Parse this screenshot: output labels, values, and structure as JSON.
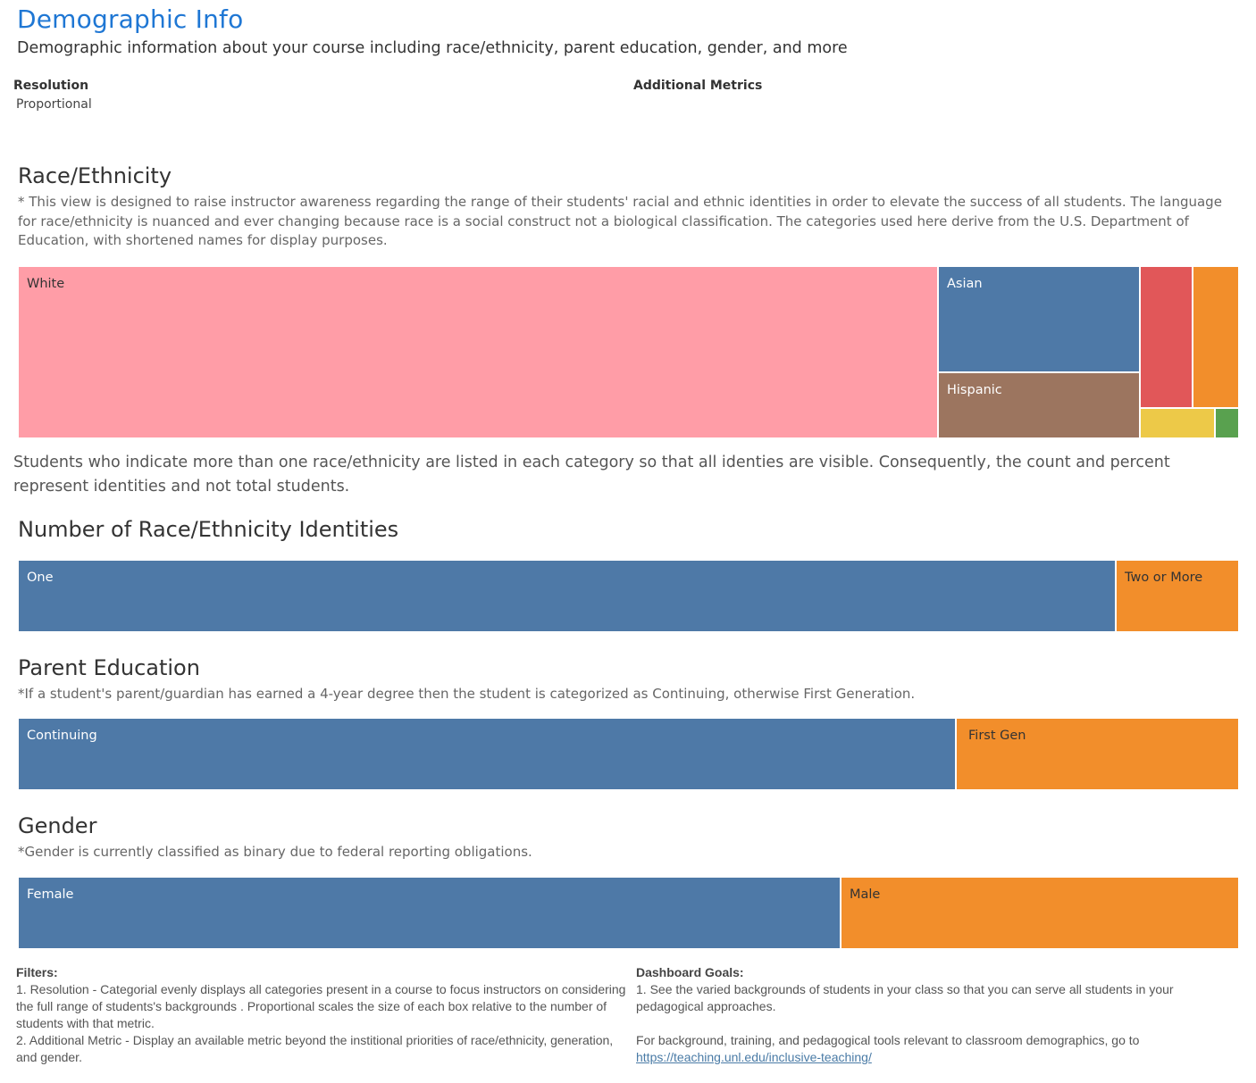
{
  "header": {
    "title": "Demographic Info",
    "subtitle": "Demographic information about your course including race/ethnicity, parent education, gender, and more"
  },
  "filters": {
    "resolution_label": "Resolution",
    "resolution_value": "Proportional",
    "additional_metrics_label": "Additional Metrics"
  },
  "race": {
    "title": "Race/Ethnicity",
    "note": "* This view is designed to raise instructor awareness regarding the range of their students' racial and ethnic identities in order to elevate the success of all students. The language for race/ethnicity is nuanced and ever changing because race is a social construct not a biological classification. The categories used here derive from the U.S. Department of Education, with shortened names for display purposes.",
    "boxes": [
      {
        "label": "White",
        "color": "#ff9da7"
      },
      {
        "label": "Asian",
        "color": "#4e79a7"
      },
      {
        "label": "Hispanic",
        "color": "#9c755f"
      },
      {
        "label": "",
        "color": "#e15759"
      },
      {
        "label": "",
        "color": "#f28e2b"
      },
      {
        "label": "",
        "color": "#edc948"
      },
      {
        "label": "",
        "color": "#59a14f"
      }
    ],
    "explanation": "Students who indicate more than one race/ethnicity are listed in each category so that all identies are visible. Consequently, the count and percent represent identities and not total students."
  },
  "identities": {
    "title": "Number of Race/Ethnicity Identities",
    "segments": [
      {
        "label": "One",
        "share": 0.899,
        "color": "#4e79a7"
      },
      {
        "label": "Two or More",
        "share": 0.101,
        "color": "#f28e2b"
      }
    ]
  },
  "parent_education": {
    "title": "Parent Education",
    "note": "*If a student's parent/guardian has earned a 4-year degree then the student is categorized as Continuing, otherwise First Generation.",
    "segments": [
      {
        "label": "Continuing",
        "share": 0.768,
        "color": "#4e79a7"
      },
      {
        "label": "First Gen",
        "share": 0.232,
        "color": "#f28e2b"
      }
    ]
  },
  "gender": {
    "title": "Gender",
    "note": "*Gender is currently classified as binary due to federal reporting obligations.",
    "segments": [
      {
        "label": "Female",
        "share": 0.674,
        "color": "#4e79a7"
      },
      {
        "label": "Male",
        "share": 0.326,
        "color": "#f28e2b"
      }
    ]
  },
  "footer": {
    "filters_heading": "Filters:",
    "filters_line1": "1. Resolution - Categorial evenly displays all categories present in a course to focus instructors on considering the full range of students's backgrounds . Proportional  scales the size of each box relative to the number of students with that metric.",
    "filters_line2": "2. Additional Metric - Display an available metric beyond the institional priorities of race/ethnicity, generation, and gender.",
    "goals_heading": "Dashboard Goals:",
    "goals_line1": "1. See the varied backgrounds of students in your class so that you can serve all students in your pedagogical approaches.",
    "goals_line2": "For background, training, and pedagogical tools relevant to classroom demographics, go to",
    "goals_link": "https://teaching.unl.edu/inclusive-teaching/"
  }
}
